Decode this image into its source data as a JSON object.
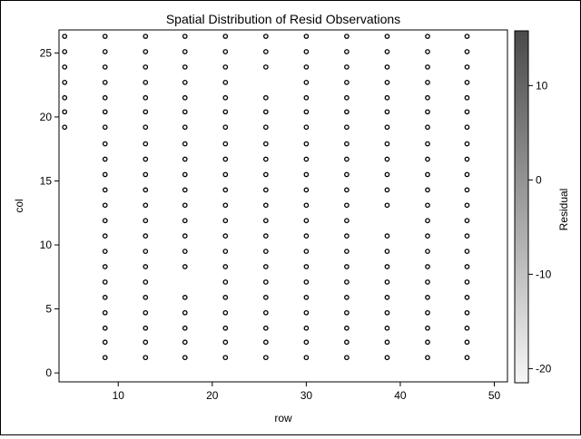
{
  "chart_data": {
    "type": "scatter",
    "title": "Spatial Distribution of Resid Observations",
    "xlabel": "row",
    "ylabel": "col",
    "colorbar_label": "Residual",
    "xlim": [
      3.7,
      51.4
    ],
    "ylim": [
      -0.7,
      26.8
    ],
    "xticks": [
      10,
      20,
      30,
      40,
      50
    ],
    "yticks": [
      0,
      5,
      10,
      15,
      20,
      25
    ],
    "colorbar_range": [
      -21.5,
      15.8
    ],
    "colorbar_ticks": [
      10,
      0,
      -10,
      -20
    ],
    "grid": false,
    "marker": "open-circle",
    "colors": {
      "marker_stroke": "#000000",
      "colorbar_top": "#4a4a4a",
      "colorbar_bottom": "#f6f6f6"
    },
    "columns": [
      {
        "x": 4.3,
        "y": [
          19.2,
          20.4,
          21.5,
          22.7,
          23.9,
          25.1,
          26.3
        ]
      },
      {
        "x": 8.6,
        "y": [
          1.2,
          2.4,
          3.5,
          4.7,
          5.9,
          7.1,
          8.3,
          9.5,
          10.7,
          11.9,
          13.1,
          14.3,
          15.5,
          16.7,
          17.9,
          19.2,
          20.4,
          21.5,
          22.7,
          23.9,
          25.1,
          26.3
        ]
      },
      {
        "x": 12.9,
        "y": [
          1.2,
          2.4,
          3.5,
          4.7,
          5.9,
          7.1,
          8.3,
          9.5,
          10.7,
          11.9,
          13.1,
          14.3,
          15.5,
          16.7,
          17.9,
          19.2,
          20.4,
          21.5,
          22.7,
          23.9,
          25.1,
          26.3
        ]
      },
      {
        "x": 17.1,
        "y": [
          1.2,
          2.4,
          3.5,
          4.7,
          5.9,
          8.3,
          9.5,
          10.7,
          11.9,
          13.1,
          14.3,
          15.5,
          16.7,
          17.9,
          19.2,
          20.4,
          21.5,
          22.7,
          23.9,
          25.1,
          26.3
        ]
      },
      {
        "x": 21.4,
        "y": [
          1.2,
          2.4,
          3.5,
          4.7,
          5.9,
          7.1,
          8.3,
          9.5,
          10.7,
          11.9,
          13.1,
          14.3,
          15.5,
          16.7,
          17.9,
          19.2,
          20.4,
          21.5,
          22.7,
          23.9,
          25.1,
          26.3
        ]
      },
      {
        "x": 25.7,
        "y": [
          1.2,
          2.4,
          3.5,
          4.7,
          5.9,
          7.1,
          8.3,
          9.5,
          10.7,
          11.9,
          13.1,
          14.3,
          15.5,
          16.7,
          17.9,
          19.2,
          20.4,
          21.5,
          23.9,
          25.1,
          26.3
        ]
      },
      {
        "x": 30.0,
        "y": [
          1.2,
          2.4,
          3.5,
          4.7,
          5.9,
          7.1,
          8.3,
          9.5,
          10.7,
          11.9,
          13.1,
          14.3,
          15.5,
          16.7,
          17.9,
          19.2,
          20.4,
          21.5,
          22.7,
          23.9,
          25.1,
          26.3
        ]
      },
      {
        "x": 34.3,
        "y": [
          1.2,
          2.4,
          3.5,
          4.7,
          5.9,
          7.1,
          8.3,
          9.5,
          10.7,
          11.9,
          13.1,
          14.3,
          15.5,
          16.7,
          17.9,
          19.2,
          20.4,
          21.5,
          22.7,
          23.9,
          25.1,
          26.3
        ]
      },
      {
        "x": 38.6,
        "y": [
          1.2,
          2.4,
          3.5,
          4.7,
          5.9,
          7.1,
          8.3,
          9.5,
          10.7,
          13.1,
          14.3,
          15.5,
          16.7,
          17.9,
          19.2,
          20.4,
          21.5,
          22.7,
          23.9,
          25.1,
          26.3
        ]
      },
      {
        "x": 42.9,
        "y": [
          1.2,
          2.4,
          3.5,
          4.7,
          5.9,
          7.1,
          8.3,
          9.5,
          10.7,
          11.9,
          13.1,
          14.3,
          15.5,
          16.7,
          17.9,
          19.2,
          20.4,
          21.5,
          22.7,
          23.9,
          25.1,
          26.3
        ]
      },
      {
        "x": 47.1,
        "y": [
          1.2,
          2.4,
          3.5,
          4.7,
          5.9,
          7.1,
          8.3,
          9.5,
          10.7,
          11.9,
          13.1,
          14.3,
          15.5,
          16.7,
          17.9,
          19.2,
          20.4,
          21.5,
          22.7,
          23.9,
          25.1,
          26.3
        ]
      }
    ]
  }
}
